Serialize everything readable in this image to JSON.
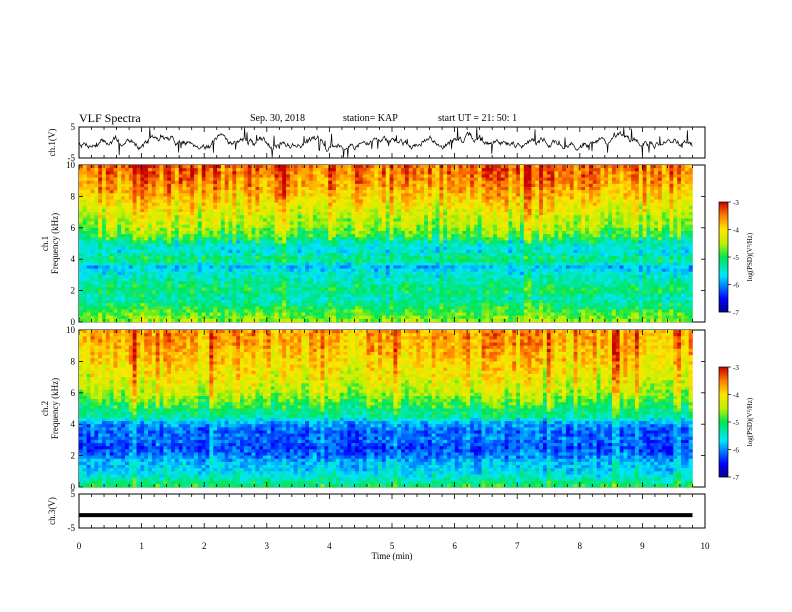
{
  "header": {
    "title": "VLF Spectra",
    "date": "Sep. 30, 2018",
    "station": "station= KAP",
    "start_time": "start  UT  =   21: 50: 1"
  },
  "chart_data": [
    {
      "type": "line",
      "panel": "ch1-waveform",
      "ylabel": "ch.1(V)",
      "ylim": [
        -5,
        5
      ],
      "ytick_labels": [
        "5",
        "-5"
      ],
      "xlim": [
        0,
        10
      ],
      "line_color": "#000000",
      "description_values": "noisy waveform fluctuating mostly between -3 and +3 V",
      "x_end": 9.8
    },
    {
      "type": "heatmap",
      "panel": "ch1-spectrogram",
      "ylabel_top": "ch.1",
      "ylabel": "Frequency (kHz)",
      "ylim": [
        0,
        10
      ],
      "ytick_labels": [
        "0",
        "2",
        "4",
        "6",
        "8",
        "10"
      ],
      "xlim": [
        0,
        10
      ],
      "x_end": 9.8,
      "colorbar": {
        "label": "log(PSD)(V²/Hz)",
        "range": [
          -7,
          -3
        ],
        "tick_labels": [
          "-3",
          "-4",
          "-5",
          "-6",
          "-7"
        ]
      },
      "band_profile": [
        {
          "f": 0.0,
          "level": -4.6
        },
        {
          "f": 0.5,
          "level": -4.8
        },
        {
          "f": 1.0,
          "level": -5.1
        },
        {
          "f": 1.5,
          "level": -5.4
        },
        {
          "f": 2.0,
          "level": -5.1
        },
        {
          "f": 2.5,
          "level": -5.3
        },
        {
          "f": 3.0,
          "level": -5.5
        },
        {
          "f": 3.5,
          "level": -5.8
        },
        {
          "f": 4.0,
          "level": -5.1
        },
        {
          "f": 4.5,
          "level": -5.6
        },
        {
          "f": 5.0,
          "level": -5.4
        },
        {
          "f": 5.5,
          "level": -4.9
        },
        {
          "f": 6.0,
          "level": -4.6
        },
        {
          "f": 7.0,
          "level": -4.3
        },
        {
          "f": 8.0,
          "level": -3.9
        },
        {
          "f": 9.0,
          "level": -3.6
        },
        {
          "f": 10.0,
          "level": -3.4
        }
      ]
    },
    {
      "type": "heatmap",
      "panel": "ch2-spectrogram",
      "ylabel_top": "ch.2",
      "ylabel": "Frequency (kHz)",
      "ylim": [
        0,
        10
      ],
      "ytick_labels": [
        "0",
        "2",
        "4",
        "6",
        "8",
        "10"
      ],
      "xlim": [
        0,
        10
      ],
      "x_end": 9.8,
      "colorbar": {
        "label": "log(PSD)(V²/Hz)",
        "range": [
          -7,
          -3
        ],
        "tick_labels": [
          "-3",
          "-4",
          "-5",
          "-6",
          "-7"
        ]
      },
      "band_profile": [
        {
          "f": 0.0,
          "level": -5.0
        },
        {
          "f": 0.5,
          "level": -5.4
        },
        {
          "f": 1.0,
          "level": -5.7
        },
        {
          "f": 1.5,
          "level": -5.8
        },
        {
          "f": 2.0,
          "level": -6.1
        },
        {
          "f": 2.5,
          "level": -6.3
        },
        {
          "f": 3.0,
          "level": -6.1
        },
        {
          "f": 3.5,
          "level": -6.2
        },
        {
          "f": 4.0,
          "level": -6.0
        },
        {
          "f": 4.5,
          "level": -5.3
        },
        {
          "f": 5.0,
          "level": -5.1
        },
        {
          "f": 5.5,
          "level": -4.8
        },
        {
          "f": 6.0,
          "level": -4.5
        },
        {
          "f": 7.0,
          "level": -4.2
        },
        {
          "f": 8.0,
          "level": -4.0
        },
        {
          "f": 9.0,
          "level": -3.8
        },
        {
          "f": 10.0,
          "level": -3.7
        }
      ]
    },
    {
      "type": "line",
      "panel": "ch3-waveform",
      "ylabel": "ch.3(V)",
      "ylim": [
        -5,
        5
      ],
      "ytick_labels": [
        "5",
        "-5"
      ],
      "xlim": [
        0,
        10
      ],
      "x_end": 9.8,
      "constant_value": -1.2,
      "line_color": "#000000"
    }
  ],
  "xaxis": {
    "label": "Time (min)",
    "tick_labels": [
      "0",
      "1",
      "2",
      "3",
      "4",
      "5",
      "6",
      "7",
      "8",
      "9",
      "10"
    ]
  }
}
